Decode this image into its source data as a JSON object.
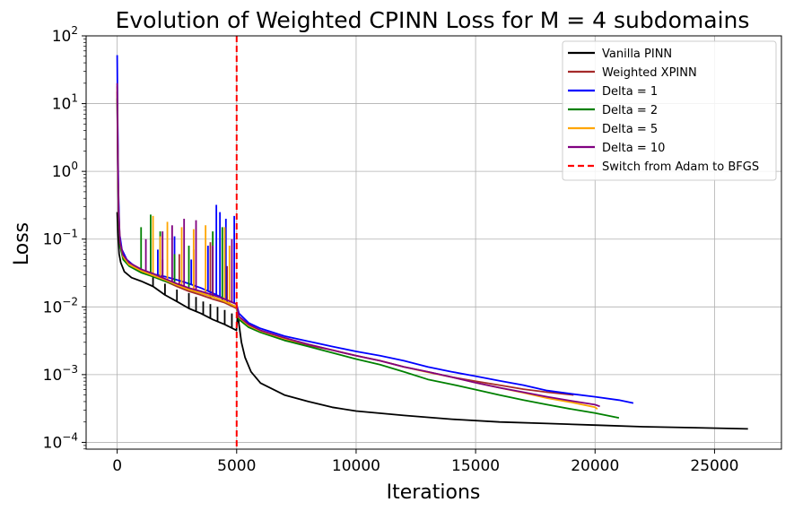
{
  "chart_data": {
    "type": "line",
    "title": "Evolution of Weighted CPINN Loss for M = 4 subdomains",
    "xlabel": "Iterations",
    "ylabel": "Loss",
    "yscale": "log",
    "xlim": [
      -1300,
      27800
    ],
    "ylim_log10": [
      -4.1,
      2.0
    ],
    "x_ticks": [
      0,
      5000,
      10000,
      15000,
      20000,
      25000
    ],
    "y_ticks": [
      {
        "base": "10",
        "exp": "2",
        "log": 2
      },
      {
        "base": "10",
        "exp": "1",
        "log": 1
      },
      {
        "base": "10",
        "exp": "0",
        "log": 0
      },
      {
        "base": "10",
        "exp": "−1",
        "log": -1
      },
      {
        "base": "10",
        "exp": "−2",
        "log": -2
      },
      {
        "base": "10",
        "exp": "−3",
        "log": -3
      },
      {
        "base": "10",
        "exp": "−4",
        "log": -4
      }
    ],
    "grid": true,
    "legend_position": "upper right",
    "vline": {
      "x": 5000,
      "label": "Switch from Adam to BFGS",
      "color": "#ff0000"
    },
    "series": [
      {
        "name": "Vanilla PINN",
        "color": "#000000",
        "points": [
          [
            0,
            0.25
          ],
          [
            30,
            0.12
          ],
          [
            80,
            0.06
          ],
          [
            150,
            0.045
          ],
          [
            300,
            0.033
          ],
          [
            600,
            0.027
          ],
          [
            1000,
            0.024
          ],
          [
            1500,
            0.02
          ],
          [
            2000,
            0.015
          ],
          [
            2500,
            0.012
          ],
          [
            3000,
            0.0095
          ],
          [
            3500,
            0.008
          ],
          [
            4000,
            0.0065
          ],
          [
            4500,
            0.0055
          ],
          [
            4990,
            0.0045
          ],
          [
            5050,
            0.008
          ],
          [
            5100,
            0.0055
          ],
          [
            5200,
            0.003
          ],
          [
            5350,
            0.0018
          ],
          [
            5600,
            0.0011
          ],
          [
            6000,
            0.00075
          ],
          [
            7000,
            0.0005
          ],
          [
            8000,
            0.0004
          ],
          [
            9000,
            0.00033
          ],
          [
            10000,
            0.00029
          ],
          [
            12000,
            0.00025
          ],
          [
            14000,
            0.00022
          ],
          [
            16000,
            0.0002
          ],
          [
            18000,
            0.00019
          ],
          [
            20000,
            0.00018
          ],
          [
            22000,
            0.00017
          ],
          [
            24000,
            0.000165
          ],
          [
            26400,
            0.000158
          ]
        ],
        "spikes": [
          [
            1500,
            0.03
          ],
          [
            2000,
            0.022
          ],
          [
            2500,
            0.018
          ],
          [
            3000,
            0.016
          ],
          [
            3300,
            0.014
          ],
          [
            3600,
            0.012
          ],
          [
            3900,
            0.011
          ],
          [
            4200,
            0.01
          ],
          [
            4500,
            0.009
          ],
          [
            4800,
            0.008
          ]
        ]
      },
      {
        "name": "Weighted XPINN",
        "color": "#a52a2a",
        "points": [
          [
            0,
            15
          ],
          [
            30,
            1.0
          ],
          [
            60,
            0.2
          ],
          [
            120,
            0.085
          ],
          [
            250,
            0.055
          ],
          [
            500,
            0.042
          ],
          [
            1000,
            0.033
          ],
          [
            1500,
            0.028
          ],
          [
            2000,
            0.024
          ],
          [
            2500,
            0.02
          ],
          [
            3000,
            0.017
          ],
          [
            3500,
            0.015
          ],
          [
            4000,
            0.013
          ],
          [
            4500,
            0.0115
          ],
          [
            4990,
            0.0095
          ],
          [
            5100,
            0.0068
          ],
          [
            5500,
            0.0052
          ],
          [
            6000,
            0.0043
          ],
          [
            7000,
            0.0033
          ],
          [
            8000,
            0.0027
          ],
          [
            9000,
            0.0023
          ],
          [
            10000,
            0.0019
          ],
          [
            11000,
            0.0016
          ],
          [
            12000,
            0.0013
          ],
          [
            13000,
            0.0011
          ],
          [
            14000,
            0.00092
          ],
          [
            15000,
            0.0008
          ],
          [
            16000,
            0.0007
          ],
          [
            17000,
            0.00061
          ],
          [
            18000,
            0.00055
          ],
          [
            19100,
            0.0005
          ]
        ],
        "spikes": [
          [
            1900,
            0.05
          ],
          [
            2600,
            0.06
          ],
          [
            3200,
            0.07
          ],
          [
            3900,
            0.09
          ],
          [
            4600,
            0.04
          ]
        ]
      },
      {
        "name": "Delta = 1",
        "color": "#0000ff",
        "points": [
          [
            0,
            52
          ],
          [
            20,
            5.0
          ],
          [
            50,
            0.5
          ],
          [
            100,
            0.12
          ],
          [
            200,
            0.07
          ],
          [
            400,
            0.05
          ],
          [
            800,
            0.038
          ],
          [
            1200,
            0.033
          ],
          [
            1600,
            0.03
          ],
          [
            2000,
            0.028
          ],
          [
            2500,
            0.025
          ],
          [
            3000,
            0.022
          ],
          [
            3500,
            0.019
          ],
          [
            4000,
            0.016
          ],
          [
            4500,
            0.013
          ],
          [
            4990,
            0.011
          ],
          [
            5100,
            0.008
          ],
          [
            5500,
            0.0058
          ],
          [
            6000,
            0.0048
          ],
          [
            7000,
            0.0037
          ],
          [
            8000,
            0.0031
          ],
          [
            9000,
            0.0026
          ],
          [
            10000,
            0.0022
          ],
          [
            11000,
            0.0019
          ],
          [
            12000,
            0.0016
          ],
          [
            13000,
            0.0013
          ],
          [
            14000,
            0.0011
          ],
          [
            15000,
            0.00095
          ],
          [
            16000,
            0.00081
          ],
          [
            17000,
            0.0007
          ],
          [
            18000,
            0.00058
          ],
          [
            19000,
            0.00052
          ],
          [
            20000,
            0.00047
          ],
          [
            21000,
            0.00042
          ],
          [
            21600,
            0.00038
          ]
        ],
        "spikes": [
          [
            1700,
            0.07
          ],
          [
            2400,
            0.11
          ],
          [
            3100,
            0.05
          ],
          [
            3800,
            0.08
          ],
          [
            4150,
            0.32
          ],
          [
            4300,
            0.25
          ],
          [
            4550,
            0.2
          ],
          [
            4900,
            0.22
          ]
        ]
      },
      {
        "name": "Delta = 2",
        "color": "#008000",
        "points": [
          [
            0,
            12
          ],
          [
            30,
            1.0
          ],
          [
            60,
            0.2
          ],
          [
            120,
            0.08
          ],
          [
            250,
            0.05
          ],
          [
            500,
            0.04
          ],
          [
            1000,
            0.032
          ],
          [
            1500,
            0.028
          ],
          [
            2000,
            0.024
          ],
          [
            2500,
            0.021
          ],
          [
            3000,
            0.018
          ],
          [
            3500,
            0.016
          ],
          [
            4000,
            0.014
          ],
          [
            4500,
            0.012
          ],
          [
            4990,
            0.01
          ],
          [
            5100,
            0.0065
          ],
          [
            5500,
            0.005
          ],
          [
            6000,
            0.0042
          ],
          [
            7000,
            0.0032
          ],
          [
            8000,
            0.0026
          ],
          [
            9000,
            0.0021
          ],
          [
            10000,
            0.0017
          ],
          [
            11000,
            0.0014
          ],
          [
            12000,
            0.0011
          ],
          [
            13000,
            0.00085
          ],
          [
            14000,
            0.00072
          ],
          [
            15000,
            0.0006
          ],
          [
            16000,
            0.0005
          ],
          [
            17000,
            0.00042
          ],
          [
            18000,
            0.00036
          ],
          [
            19000,
            0.00031
          ],
          [
            20000,
            0.00027
          ],
          [
            21000,
            0.00023
          ]
        ],
        "spikes": [
          [
            1000,
            0.15
          ],
          [
            1400,
            0.23
          ],
          [
            1800,
            0.13
          ],
          [
            2400,
            0.06
          ],
          [
            3000,
            0.08
          ],
          [
            4000,
            0.13
          ],
          [
            4400,
            0.15
          ]
        ]
      },
      {
        "name": "Delta = 5",
        "color": "#ffa500",
        "points": [
          [
            0,
            18
          ],
          [
            30,
            1.2
          ],
          [
            60,
            0.25
          ],
          [
            120,
            0.09
          ],
          [
            250,
            0.055
          ],
          [
            500,
            0.042
          ],
          [
            1000,
            0.034
          ],
          [
            1500,
            0.029
          ],
          [
            2000,
            0.025
          ],
          [
            2500,
            0.021
          ],
          [
            3000,
            0.018
          ],
          [
            3500,
            0.016
          ],
          [
            4000,
            0.014
          ],
          [
            4500,
            0.012
          ],
          [
            4990,
            0.01
          ],
          [
            5100,
            0.007
          ],
          [
            5500,
            0.0053
          ],
          [
            6000,
            0.0044
          ],
          [
            7000,
            0.0034
          ],
          [
            8000,
            0.0028
          ],
          [
            9000,
            0.0023
          ],
          [
            10000,
            0.0019
          ],
          [
            11000,
            0.0016
          ],
          [
            12000,
            0.0013
          ],
          [
            13000,
            0.00108
          ],
          [
            14000,
            0.00092
          ],
          [
            15000,
            0.00076
          ],
          [
            16000,
            0.00064
          ],
          [
            17000,
            0.00054
          ],
          [
            18000,
            0.00045
          ],
          [
            19000,
            0.00039
          ],
          [
            20000,
            0.00033
          ],
          [
            20100,
            0.00031
          ]
        ],
        "spikes": [
          [
            1500,
            0.22
          ],
          [
            1800,
            0.11
          ],
          [
            2100,
            0.18
          ],
          [
            2700,
            0.15
          ],
          [
            3200,
            0.14
          ],
          [
            3700,
            0.16
          ],
          [
            4500,
            0.15
          ],
          [
            4700,
            0.08
          ]
        ]
      },
      {
        "name": "Delta = 10",
        "color": "#800080",
        "points": [
          [
            0,
            20
          ],
          [
            30,
            1.3
          ],
          [
            60,
            0.25
          ],
          [
            120,
            0.09
          ],
          [
            250,
            0.058
          ],
          [
            500,
            0.045
          ],
          [
            1000,
            0.036
          ],
          [
            1500,
            0.031
          ],
          [
            2000,
            0.026
          ],
          [
            2500,
            0.022
          ],
          [
            3000,
            0.019
          ],
          [
            3500,
            0.017
          ],
          [
            4000,
            0.015
          ],
          [
            4500,
            0.013
          ],
          [
            4990,
            0.011
          ],
          [
            5100,
            0.0072
          ],
          [
            5500,
            0.0055
          ],
          [
            6000,
            0.0045
          ],
          [
            7000,
            0.0035
          ],
          [
            8000,
            0.0028
          ],
          [
            9000,
            0.0023
          ],
          [
            10000,
            0.0019
          ],
          [
            11000,
            0.0016
          ],
          [
            12000,
            0.0013
          ],
          [
            13000,
            0.0011
          ],
          [
            14000,
            0.00092
          ],
          [
            15000,
            0.00076
          ],
          [
            16000,
            0.00064
          ],
          [
            17000,
            0.00055
          ],
          [
            18000,
            0.00047
          ],
          [
            19000,
            0.00041
          ],
          [
            20000,
            0.00036
          ],
          [
            20200,
            0.00034
          ]
        ],
        "spikes": [
          [
            1200,
            0.1
          ],
          [
            1900,
            0.13
          ],
          [
            2300,
            0.16
          ],
          [
            2800,
            0.2
          ],
          [
            3300,
            0.19
          ],
          [
            4000,
            0.08
          ],
          [
            4800,
            0.1
          ]
        ]
      }
    ]
  }
}
